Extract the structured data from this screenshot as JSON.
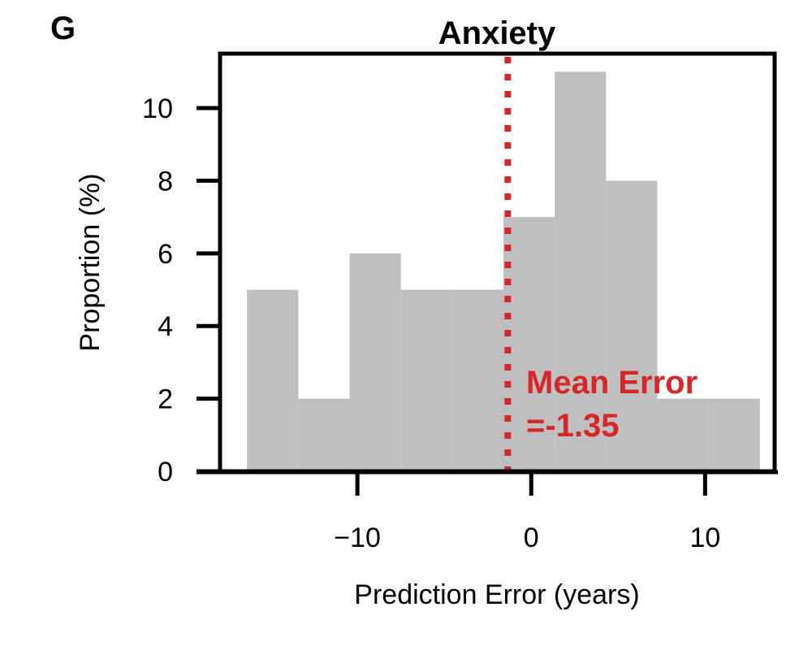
{
  "panel_label": "G",
  "chart_data": {
    "type": "bar",
    "title": "Anxiety",
    "xlabel": "Prediction Error (years)",
    "ylabel": "Proportion (%)",
    "xlim": [
      -17.9,
      14.0
    ],
    "ylim": [
      0,
      11.5
    ],
    "x_ticks": [
      -10,
      0,
      10
    ],
    "x_tick_labels": [
      "−10",
      "0",
      "10"
    ],
    "y_ticks": [
      0,
      2,
      4,
      6,
      8,
      10
    ],
    "y_tick_labels": [
      "0",
      "2",
      "4",
      "6",
      "8",
      "10"
    ],
    "bin_edges": [
      -16.35,
      -13.4,
      -10.45,
      -7.5,
      -4.55,
      -1.6,
      1.35,
      4.3,
      7.25,
      10.2,
      13.15
    ],
    "values": [
      5,
      2,
      6,
      5,
      5,
      7,
      11,
      8,
      2,
      2
    ],
    "bar_color": "#bfbfbf",
    "mean_error": {
      "value": -1.35,
      "line_label": "Mean Error",
      "value_label": "=-1.35",
      "color": "#d62728"
    },
    "grid": false
  }
}
